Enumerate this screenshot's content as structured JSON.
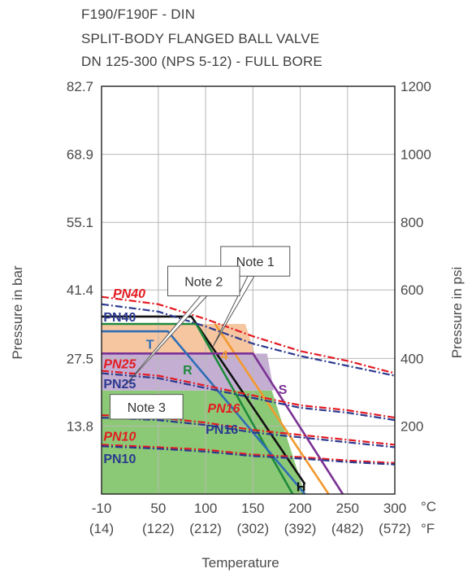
{
  "title_lines": [
    "F190/F190F - DIN",
    "SPLIT-BODY FLANGED BALL VALVE",
    "DN 125-300 (NPS 5-12) - FULL BORE"
  ],
  "chart_data": {
    "type": "line",
    "title": "F190/F190F - DIN SPLIT-BODY FLANGED BALL VALVE DN 125-300 (NPS 5-12) - FULL BORE",
    "xlabel": "Temperature",
    "ylabel_left": "Pressure in bar",
    "ylabel_right": "Pressure in psi",
    "xlim": [
      -10,
      300
    ],
    "ylim": [
      0,
      82.7
    ],
    "grid": true,
    "x_unit_c": "°C",
    "x_unit_f": "°F",
    "x_ticks_c": [
      "-10",
      "50",
      "100",
      "150",
      "200",
      "250",
      "300"
    ],
    "x_ticks_c_values": [
      -10,
      50,
      100,
      150,
      200,
      250,
      300
    ],
    "x_ticks_f": [
      "(14)",
      "(122)",
      "(212)",
      "(302)",
      "(392)",
      "(482)",
      "(572)"
    ],
    "y_ticks_bar": [
      "82.7",
      "68.9",
      "55.1",
      "41.4",
      "27.5",
      "13.8"
    ],
    "y_ticks_bar_values": [
      82.7,
      68.9,
      55.1,
      41.4,
      27.5,
      13.8
    ],
    "y_ticks_psi": [
      "1200",
      "1000",
      "800",
      "600",
      "400",
      "200"
    ],
    "y_ticks_psi_values": [
      82.7,
      68.9,
      55.1,
      41.4,
      27.5,
      13.8
    ],
    "areas": [
      {
        "name": "green",
        "color": "#8cc976",
        "points": [
          [
            -10,
            21
          ],
          [
            170,
            21
          ],
          [
            205,
            0
          ],
          [
            -10,
            0
          ]
        ]
      },
      {
        "name": "purple",
        "color": "#c4afd3",
        "points": [
          [
            -10,
            28.5
          ],
          [
            165,
            28.5
          ],
          [
            172,
            21
          ],
          [
            -10,
            21
          ]
        ]
      },
      {
        "name": "orange",
        "color": "#f6c6a1",
        "points": [
          [
            -10,
            34.5
          ],
          [
            142,
            34.5
          ],
          [
            152,
            28.5
          ],
          [
            -10,
            28.5
          ]
        ]
      }
    ],
    "series": [
      {
        "name": "H",
        "color": "#111111",
        "style": "solid",
        "points": [
          [
            -10,
            36
          ],
          [
            85,
            36
          ],
          [
            205,
            2
          ]
        ]
      },
      {
        "name": "R",
        "color": "#1e8a3c",
        "style": "solid",
        "points": [
          [
            -10,
            34.5
          ],
          [
            90,
            34.5
          ],
          [
            192,
            0
          ]
        ]
      },
      {
        "name": "4",
        "color": "#f39a2e",
        "style": "solid",
        "points": [
          [
            110,
            34.5
          ],
          [
            230,
            0
          ]
        ]
      },
      {
        "name": "S",
        "color": "#7b3294",
        "style": "solid",
        "points": [
          [
            -10,
            28.5
          ],
          [
            150,
            28.5
          ],
          [
            245,
            0
          ]
        ]
      },
      {
        "name": "T",
        "color": "#2e6db5",
        "style": "solid",
        "points": [
          [
            -10,
            33
          ],
          [
            60,
            33
          ],
          [
            205,
            0
          ]
        ]
      },
      {
        "name": "PN40",
        "color": "#e31b23",
        "style": "dashdot",
        "points": [
          [
            -10,
            40
          ],
          [
            50,
            38.5
          ],
          [
            100,
            35.5
          ],
          [
            150,
            32
          ],
          [
            200,
            29
          ],
          [
            250,
            27
          ],
          [
            300,
            24.5
          ]
        ]
      },
      {
        "name": "PN40",
        "color": "#2b3a8f",
        "style": "dashdot",
        "points": [
          [
            -10,
            38.5
          ],
          [
            50,
            37
          ],
          [
            100,
            34
          ],
          [
            150,
            30.5
          ],
          [
            200,
            28
          ],
          [
            250,
            26
          ],
          [
            300,
            24
          ]
        ]
      },
      {
        "name": "PN25",
        "color": "#e31b23",
        "style": "dashdot",
        "points": [
          [
            -10,
            25
          ],
          [
            50,
            24
          ],
          [
            100,
            22
          ],
          [
            150,
            20
          ],
          [
            200,
            18
          ],
          [
            250,
            17
          ],
          [
            300,
            15.5
          ]
        ]
      },
      {
        "name": "PN25",
        "color": "#2b3a8f",
        "style": "dashdot",
        "points": [
          [
            -10,
            24.5
          ],
          [
            50,
            23.5
          ],
          [
            100,
            21.5
          ],
          [
            150,
            19.5
          ],
          [
            200,
            17.5
          ],
          [
            250,
            16.5
          ],
          [
            300,
            15
          ]
        ]
      },
      {
        "name": "PN16",
        "color": "#e31b23",
        "style": "dashdot",
        "points": [
          [
            -10,
            16
          ],
          [
            50,
            15.5
          ],
          [
            100,
            14.5
          ],
          [
            150,
            13
          ],
          [
            200,
            12
          ],
          [
            250,
            11
          ],
          [
            300,
            10
          ]
        ]
      },
      {
        "name": "PN16",
        "color": "#2b3a8f",
        "style": "dashdot",
        "points": [
          [
            -10,
            15.5
          ],
          [
            50,
            15
          ],
          [
            100,
            14
          ],
          [
            150,
            12.5
          ],
          [
            200,
            11.5
          ],
          [
            250,
            10.5
          ],
          [
            300,
            9.5
          ]
        ]
      },
      {
        "name": "PN10",
        "color": "#e31b23",
        "style": "dashdot",
        "points": [
          [
            -10,
            10
          ],
          [
            50,
            9.5
          ],
          [
            100,
            9
          ],
          [
            150,
            8
          ],
          [
            200,
            7.5
          ],
          [
            250,
            6.8
          ],
          [
            300,
            6.3
          ]
        ]
      },
      {
        "name": "PN10",
        "color": "#2b3a8f",
        "style": "dashdot",
        "points": [
          [
            -10,
            9.7
          ],
          [
            50,
            9.2
          ],
          [
            100,
            8.6
          ],
          [
            150,
            7.7
          ],
          [
            200,
            7.2
          ],
          [
            250,
            6.5
          ],
          [
            300,
            6
          ]
        ]
      }
    ],
    "curve_labels": [
      {
        "text": "PN40",
        "color": "#e31b23",
        "italic": true,
        "x": 2,
        "y": 39.8
      },
      {
        "text": "PN40",
        "color": "#2b3a8f",
        "italic": false,
        "x": -8,
        "y": 35
      },
      {
        "text": "PN25",
        "color": "#e31b23",
        "italic": true,
        "x": -8,
        "y": 25.5
      },
      {
        "text": "PN25",
        "color": "#2b3a8f",
        "italic": false,
        "x": -8,
        "y": 21.5
      },
      {
        "text": "PN16",
        "color": "#e31b23",
        "italic": true,
        "x": 102,
        "y": 16.5
      },
      {
        "text": "PN16",
        "color": "#2b3a8f",
        "italic": false,
        "x": 100,
        "y": 12.2
      },
      {
        "text": "PN10",
        "color": "#e31b23",
        "italic": true,
        "x": -8,
        "y": 10.8
      },
      {
        "text": "PN10",
        "color": "#2b3a8f",
        "italic": false,
        "x": -8,
        "y": 6.3
      },
      {
        "text": "T",
        "color": "#2e6db5",
        "italic": false,
        "x": 37,
        "y": 29.5
      },
      {
        "text": "R",
        "color": "#1e8a3c",
        "italic": false,
        "x": 76,
        "y": 24.3
      },
      {
        "text": "4",
        "color": "#f39a2e",
        "italic": false,
        "x": 116,
        "y": 27.2
      },
      {
        "text": "S",
        "color": "#7b3294",
        "italic": false,
        "x": 177,
        "y": 20.3
      },
      {
        "text": "H",
        "color": "#111111",
        "italic": false,
        "x": 196,
        "y": 0.6
      }
    ],
    "notes": [
      {
        "text": "Note 1",
        "box_c": [
          116,
          189
        ],
        "box_y": [
          50.2,
          44.2
        ],
        "pointer": [
          [
            148,
            44.2
          ],
          [
            108,
            30
          ]
        ]
      },
      {
        "text": "Note 2",
        "box_c": [
          60,
          136
        ],
        "box_y": [
          46.2,
          40.2
        ],
        "pointer": [
          [
            98,
            40.2
          ],
          [
            15,
            22
          ]
        ]
      },
      {
        "text": "Note 3",
        "box_c": [
          -1,
          76
        ],
        "box_y": [
          20.2,
          15.2
        ],
        "pointer": null
      }
    ]
  }
}
